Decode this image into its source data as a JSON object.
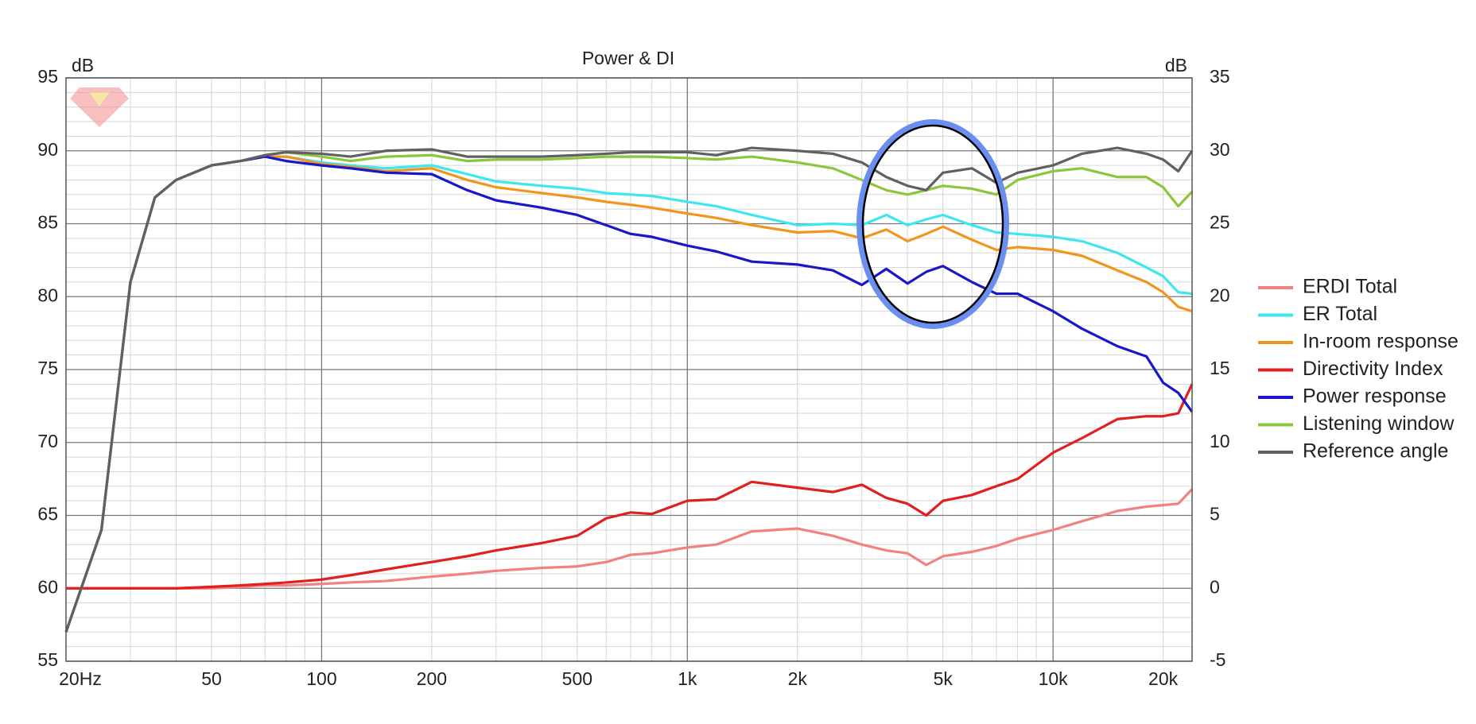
{
  "chart_data": {
    "type": "line",
    "title": "Power & DI",
    "ylabel": "dB",
    "y2label": "dB",
    "xscale": "log",
    "xlim": [
      20,
      24000
    ],
    "xticks": [
      {
        "value": 20,
        "label": "20Hz"
      },
      50,
      100,
      200,
      500,
      {
        "value": 1000,
        "label": "1k"
      },
      {
        "value": 2000,
        "label": "2k"
      },
      {
        "value": 5000,
        "label": "5k"
      },
      {
        "value": 10000,
        "label": "10k"
      },
      {
        "value": 20000,
        "label": "20k"
      }
    ],
    "xminorticks": [
      30,
      40,
      60,
      70,
      80,
      90,
      300,
      400,
      600,
      700,
      800,
      900,
      3000,
      4000,
      6000,
      7000,
      8000,
      9000
    ],
    "xmajorgrid": [
      100,
      1000,
      10000
    ],
    "ylim": [
      55,
      95
    ],
    "yticks": [
      55,
      60,
      65,
      70,
      75,
      80,
      85,
      90,
      95
    ],
    "yminorticks": [
      56,
      57,
      58,
      59,
      61,
      62,
      63,
      64,
      66,
      67,
      68,
      69,
      71,
      72,
      73,
      74,
      76,
      77,
      78,
      79,
      81,
      82,
      83,
      84,
      86,
      87,
      88,
      89,
      91,
      92,
      93,
      94
    ],
    "y2lim": [
      -5,
      35
    ],
    "y2ticks": [
      -5,
      0,
      5,
      10,
      15,
      20,
      25,
      30,
      35
    ],
    "grid": true,
    "legend": "right",
    "x": [
      20,
      25,
      30,
      35,
      40,
      50,
      60,
      70,
      80,
      100,
      120,
      150,
      200,
      250,
      300,
      400,
      500,
      600,
      700,
      800,
      1000,
      1200,
      1500,
      2000,
      2500,
      3000,
      3500,
      4000,
      4500,
      5000,
      6000,
      7000,
      8000,
      10000,
      12000,
      15000,
      18000,
      20000,
      22000,
      24000
    ],
    "series": [
      {
        "name": "ERDI Total",
        "color": "#f08282",
        "axis": "y2",
        "values": [
          0,
          0,
          0,
          0,
          0,
          0,
          0.1,
          0.2,
          0.2,
          0.3,
          0.4,
          0.5,
          0.8,
          1.0,
          1.2,
          1.4,
          1.5,
          1.8,
          2.3,
          2.4,
          2.8,
          3.0,
          3.9,
          4.1,
          3.6,
          3.0,
          2.6,
          2.4,
          1.6,
          2.2,
          2.5,
          2.9,
          3.4,
          4.0,
          4.6,
          5.3,
          5.6,
          5.7,
          5.8,
          6.8
        ]
      },
      {
        "name": "ER Total",
        "color": "#3ee6f0",
        "values": [
          57,
          64,
          81,
          86.8,
          88,
          89,
          89.3,
          89.6,
          89.6,
          89.2,
          89.0,
          88.8,
          89.0,
          88.4,
          87.9,
          87.6,
          87.4,
          87.1,
          87.0,
          86.9,
          86.5,
          86.2,
          85.6,
          84.9,
          85.0,
          84.9,
          85.6,
          84.9,
          85.3,
          85.6,
          84.9,
          84.4,
          84.3,
          84.1,
          83.8,
          83.0,
          82.0,
          81.4,
          80.3,
          80.2
        ]
      },
      {
        "name": "In-room response",
        "color": "#f0961e",
        "values": [
          57,
          64,
          81,
          86.8,
          88,
          89,
          89.3,
          89.6,
          89.6,
          89.1,
          88.9,
          88.6,
          88.8,
          88.0,
          87.5,
          87.1,
          86.8,
          86.5,
          86.3,
          86.1,
          85.7,
          85.4,
          84.9,
          84.4,
          84.5,
          84.0,
          84.6,
          83.8,
          84.3,
          84.8,
          83.9,
          83.2,
          83.4,
          83.2,
          82.8,
          81.8,
          81.0,
          80.3,
          79.3,
          79.0
        ]
      },
      {
        "name": "Directivity Index",
        "color": "#e02020",
        "axis": "y2",
        "values": [
          0,
          0,
          0,
          0,
          0,
          0.1,
          0.2,
          0.3,
          0.4,
          0.6,
          0.9,
          1.3,
          1.8,
          2.2,
          2.6,
          3.1,
          3.6,
          4.8,
          5.2,
          5.1,
          6.0,
          6.1,
          7.3,
          6.9,
          6.6,
          7.1,
          6.2,
          5.8,
          5.0,
          6.0,
          6.4,
          7.0,
          7.5,
          9.3,
          10.3,
          11.6,
          11.8,
          11.8,
          12.0,
          14.0
        ]
      },
      {
        "name": "Power response",
        "color": "#1818c8",
        "values": [
          57,
          64,
          81,
          86.8,
          88,
          89,
          89.3,
          89.6,
          89.3,
          89.0,
          88.8,
          88.5,
          88.4,
          87.3,
          86.6,
          86.1,
          85.6,
          84.9,
          84.3,
          84.1,
          83.5,
          83.1,
          82.4,
          82.2,
          81.8,
          80.8,
          81.9,
          80.9,
          81.7,
          82.1,
          81.0,
          80.2,
          80.2,
          79.0,
          77.8,
          76.6,
          75.9,
          74.1,
          73.4,
          72.1
        ]
      },
      {
        "name": "Listening window",
        "color": "#8cc63c",
        "values": [
          57,
          64,
          81,
          86.8,
          88,
          89,
          89.3,
          89.7,
          89.9,
          89.6,
          89.3,
          89.6,
          89.7,
          89.3,
          89.4,
          89.4,
          89.5,
          89.6,
          89.6,
          89.6,
          89.5,
          89.4,
          89.6,
          89.2,
          88.8,
          88.0,
          87.3,
          87.0,
          87.3,
          87.6,
          87.4,
          87.0,
          88.0,
          88.6,
          88.8,
          88.2,
          88.2,
          87.5,
          86.2,
          87.2
        ]
      },
      {
        "name": "Reference angle",
        "color": "#606060",
        "values": [
          57,
          64,
          81,
          86.8,
          88,
          89,
          89.3,
          89.7,
          89.9,
          89.8,
          89.6,
          90.0,
          90.1,
          89.6,
          89.6,
          89.6,
          89.7,
          89.8,
          89.9,
          89.9,
          89.9,
          89.7,
          90.2,
          90.0,
          89.8,
          89.2,
          88.2,
          87.6,
          87.3,
          88.5,
          88.8,
          87.8,
          88.5,
          89.0,
          89.8,
          90.2,
          89.8,
          89.4,
          88.6,
          90.0
        ]
      }
    ]
  }
}
